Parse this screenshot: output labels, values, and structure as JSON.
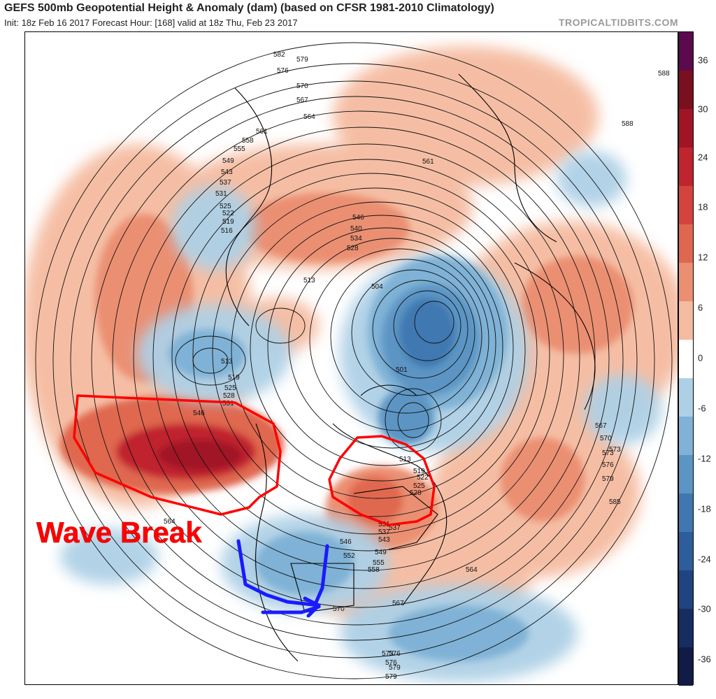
{
  "header": {
    "title": "GEFS 500mb Geopotential Height & Anomaly (dam) (based on CFSR 1981-2010 Climatology)",
    "subtitle": "Init: 18z Feb 16 2017   Forecast Hour: [168]   valid at 18z Thu, Feb 23 2017",
    "brand": "TROPICALTIDBITS.COM"
  },
  "annotation": {
    "label": "Wave Break",
    "ridge_color": "#ff0000",
    "trough_arrow_color": "#1a1aff"
  },
  "colorbar": {
    "tick_labels": [
      "36",
      "30",
      "24",
      "18",
      "12",
      "6",
      "0",
      "-6",
      "-12",
      "-18",
      "-24",
      "-30",
      "-36"
    ],
    "colors": [
      "#5b0a4d",
      "#7a0f1f",
      "#a01426",
      "#c0242e",
      "#d4443c",
      "#e0674f",
      "#eb8f72",
      "#f5bba0",
      "#ffffff",
      "#aed0e6",
      "#7fb2d6",
      "#5b95c4",
      "#3f78b1",
      "#2d5d9a",
      "#1f4480",
      "#162d61",
      "#101c45"
    ]
  },
  "contours": {
    "labels": [
      "582",
      "579",
      "576",
      "570",
      "567",
      "564",
      "561",
      "558",
      "555",
      "549",
      "543",
      "537",
      "531",
      "525",
      "522",
      "519",
      "516",
      "513",
      "546",
      "540",
      "534",
      "528",
      "504",
      "501",
      "588",
      "588",
      "561",
      "513",
      "519",
      "525",
      "528",
      "531",
      "546",
      "564",
      "573",
      "576",
      "579",
      "585",
      "567",
      "570",
      "573",
      "576",
      "579",
      "546",
      "552",
      "549",
      "555",
      "558",
      "543",
      "537",
      "531",
      "528",
      "525",
      "522",
      "519",
      "513",
      "564",
      "570",
      "567",
      "573",
      "576",
      "579",
      "537"
    ]
  },
  "icons": {
    "ridge_outline": "red-circle-outline-icon",
    "trough_arrow": "blue-arrow-icon"
  }
}
